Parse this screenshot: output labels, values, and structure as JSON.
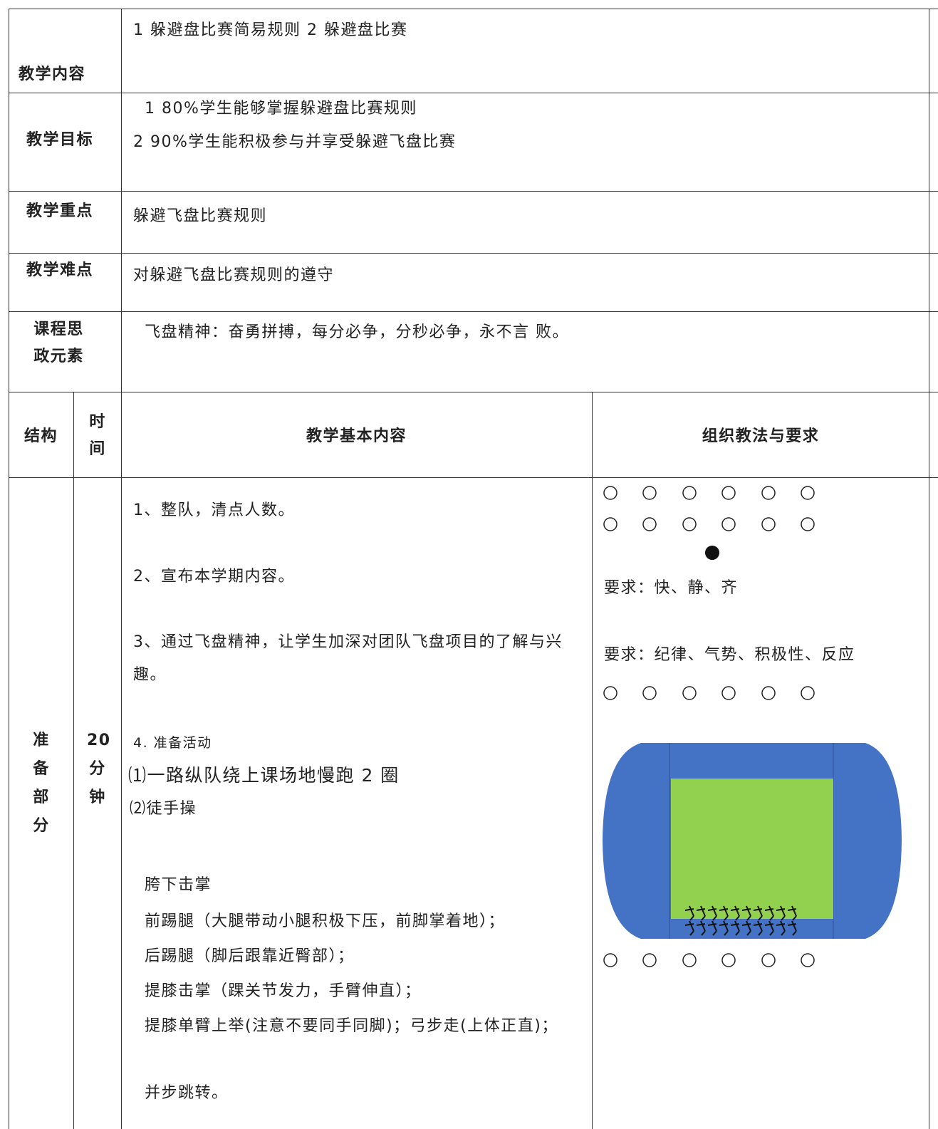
{
  "rows": [
    {
      "label": "教学内容",
      "content": [
        "1 躲避盘比赛简易规则 2 躲避盘比赛"
      ]
    },
    {
      "label": "教学目标",
      "content": [
        "1 80%学生能够掌握躲避盘比赛规则",
        "2 90%学生能积极参与并享受躲避飞盘比赛"
      ]
    },
    {
      "label": "教学重点",
      "content": [
        "躲避飞盘比赛规则"
      ]
    },
    {
      "label": "教学难点",
      "content": [
        "对躲避飞盘比赛规则的遵守"
      ]
    },
    {
      "label": "课程思政元素",
      "content": [
        "飞盘精神：奋勇拼搏，每分必争，分秒必争，永不言 败。"
      ]
    }
  ],
  "header": [
    "结构",
    "时间",
    "教学基本内容",
    "组织教法与要求"
  ],
  "section": {
    "structure": "准备部分",
    "time": "20分钟",
    "content": [
      "1、整队，清点人数。",
      "2、宣布本学期内容。",
      "3、通过飞盘精神，让学生加深对团队飞盘项目的了解与兴趣。",
      "4. 准备活动",
      "⑴一路纵队绕上课场地慢跑 2 圈",
      "⑵徒手操",
      "胯下击掌",
      "前踢腿（大腿带动小腿积极下压，前脚掌着地）；",
      "后踢腿（脚后跟靠近臀部）；",
      "提膝击掌（踝关节发力，手臂伸直）；",
      "提膝单臂上举(注意不要同手同脚)；弓步走(上体正直)；",
      "并步跳转。"
    ],
    "requirements": [
      "要求：快、静、齐",
      "要求：纪律、气势、积极性、反应"
    ]
  }
}
